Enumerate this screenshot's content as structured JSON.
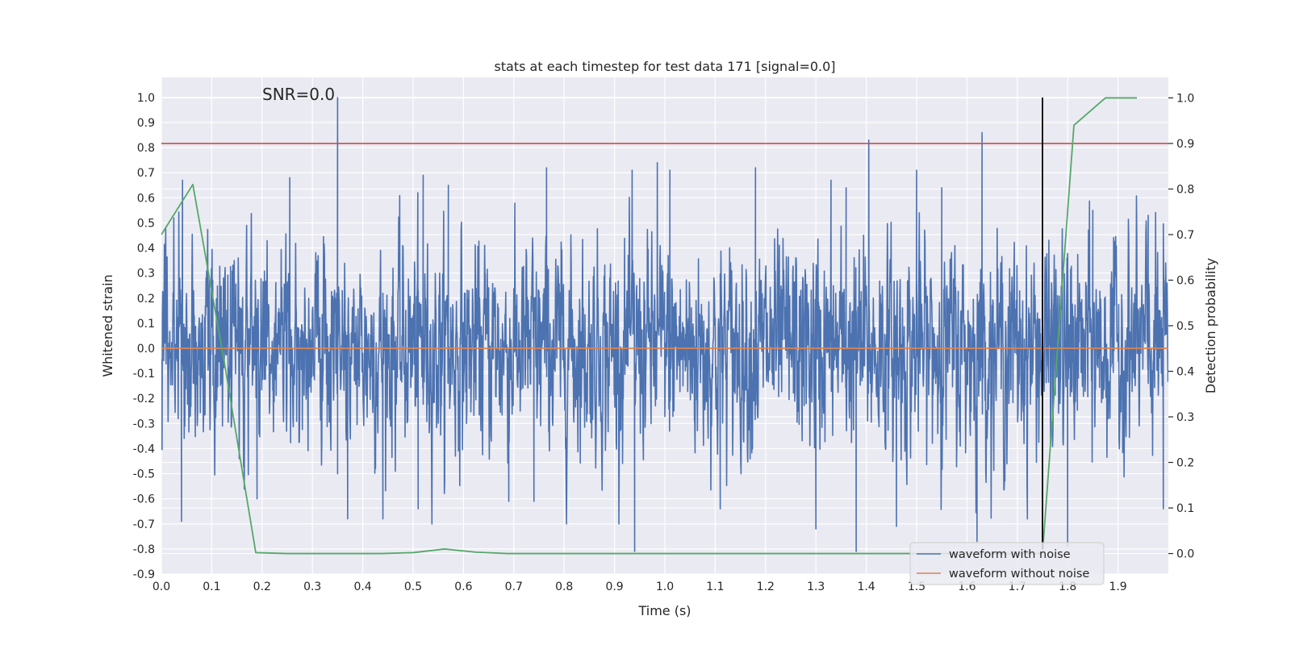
{
  "chart_data": {
    "type": "line",
    "title": "stats at each timestep for test data 171 [signal=0.0]",
    "xlabel": "Time (s)",
    "ylabel": "Whitened strain",
    "ylabel_right": "Detection probability",
    "xlim": [
      0.0,
      2.0
    ],
    "ylim": [
      -0.9,
      1.08
    ],
    "ylim_right": [
      -0.045,
      1.045
    ],
    "x_ticks": [
      "0.0",
      "0.1",
      "0.2",
      "0.3",
      "0.4",
      "0.5",
      "0.6",
      "0.7",
      "0.8",
      "0.9",
      "1.0",
      "1.1",
      "1.2",
      "1.3",
      "1.4",
      "1.5",
      "1.6",
      "1.7",
      "1.8",
      "1.9"
    ],
    "y_ticks": [
      "1.0",
      "0.9",
      "0.8",
      "0.7",
      "0.6",
      "0.5",
      "0.4",
      "0.3",
      "0.2",
      "0.1",
      "0.0",
      "-0.1",
      "-0.2",
      "-0.3",
      "-0.4",
      "-0.5",
      "-0.6",
      "-0.7",
      "-0.8",
      "-0.9"
    ],
    "y_right_ticks": [
      "1.0",
      "0.9",
      "0.8",
      "0.7",
      "0.6",
      "0.5",
      "0.4",
      "0.3",
      "0.2",
      "0.1",
      "0.0"
    ],
    "annotation": "SNR=0.0",
    "grid": true,
    "legend_position": "bottom-right",
    "colors": {
      "background": "#eaeaf2",
      "grid": "#ffffff",
      "noise": "#4c72b0",
      "clean": "#dd8452",
      "probability": "#55a868",
      "threshold": "#c44e52",
      "marker": "#000000"
    },
    "series": [
      {
        "name": "waveform with noise",
        "noise_amplitude": 0.25,
        "points": [
          [
            0.35,
            1.0
          ],
          [
            0.35,
            -0.5
          ],
          [
            0.042,
            0.67
          ],
          [
            0.04,
            -0.69
          ],
          [
            0.19,
            -0.6
          ],
          [
            0.255,
            0.68
          ],
          [
            0.37,
            -0.68
          ],
          [
            0.44,
            -0.68
          ],
          [
            0.52,
            0.69
          ],
          [
            0.51,
            -0.64
          ],
          [
            0.57,
            0.65
          ],
          [
            0.69,
            -0.61
          ],
          [
            0.74,
            -0.61
          ],
          [
            0.765,
            0.72
          ],
          [
            0.94,
            -0.81
          ],
          [
            0.935,
            0.71
          ],
          [
            0.985,
            0.74
          ],
          [
            1.01,
            0.71
          ],
          [
            1.11,
            -0.64
          ],
          [
            1.18,
            0.72
          ],
          [
            1.3,
            -0.72
          ],
          [
            1.33,
            0.67
          ],
          [
            1.38,
            -0.81
          ],
          [
            1.405,
            0.83
          ],
          [
            1.36,
            0.64
          ],
          [
            1.46,
            -0.71
          ],
          [
            1.5,
            0.71
          ],
          [
            1.55,
            0.64
          ],
          [
            1.63,
            0.86
          ],
          [
            1.62,
            -0.77
          ],
          [
            1.72,
            -0.68
          ],
          [
            1.8,
            -0.79
          ],
          [
            1.85,
            0.55
          ],
          [
            1.96,
            0.53
          ],
          [
            1.99,
            -0.64
          ]
        ]
      },
      {
        "name": "waveform without noise",
        "points": [
          [
            0.0,
            0.0
          ],
          [
            2.0,
            0.0
          ]
        ]
      },
      {
        "name": "detection probability",
        "axis": "right",
        "points": [
          [
            0.0,
            0.7
          ],
          [
            0.0625,
            0.81
          ],
          [
            0.125,
            0.42
          ],
          [
            0.1875,
            0.002
          ],
          [
            0.25,
            0.0
          ],
          [
            0.3125,
            0.0
          ],
          [
            0.375,
            0.0
          ],
          [
            0.4375,
            0.0
          ],
          [
            0.5,
            0.002
          ],
          [
            0.5625,
            0.01
          ],
          [
            0.625,
            0.003
          ],
          [
            0.6875,
            0.0
          ],
          [
            0.75,
            0.0
          ],
          [
            0.8125,
            0.0
          ],
          [
            0.875,
            0.0
          ],
          [
            0.9375,
            0.0
          ],
          [
            1.0,
            0.0
          ],
          [
            1.0625,
            0.0
          ],
          [
            1.125,
            0.0
          ],
          [
            1.1875,
            0.0
          ],
          [
            1.25,
            0.0
          ],
          [
            1.3125,
            0.0
          ],
          [
            1.375,
            0.0
          ],
          [
            1.4375,
            0.0
          ],
          [
            1.5,
            0.0
          ],
          [
            1.5625,
            0.0
          ],
          [
            1.625,
            0.0
          ],
          [
            1.6875,
            0.0
          ],
          [
            1.75,
            0.0
          ],
          [
            1.8125,
            0.94
          ],
          [
            1.875,
            1.0
          ],
          [
            1.9375,
            1.0
          ]
        ]
      }
    ],
    "threshold": {
      "axis": "right",
      "value": 0.9
    },
    "marker_line": {
      "x": 1.75,
      "y_from": -0.8,
      "y_to": 1.0
    },
    "legend": [
      "waveform with noise",
      "waveform without noise"
    ]
  }
}
